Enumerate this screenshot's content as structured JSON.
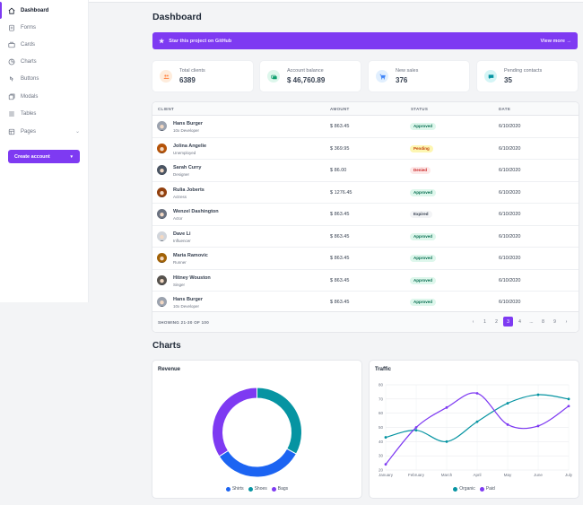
{
  "sidebar": {
    "items": [
      {
        "label": "Dashboard",
        "icon": "home-icon"
      },
      {
        "label": "Forms",
        "icon": "forms-icon"
      },
      {
        "label": "Cards",
        "icon": "cards-icon"
      },
      {
        "label": "Charts",
        "icon": "charts-icon"
      },
      {
        "label": "Buttons",
        "icon": "buttons-icon"
      },
      {
        "label": "Modals",
        "icon": "modals-icon"
      },
      {
        "label": "Tables",
        "icon": "tables-icon"
      },
      {
        "label": "Pages",
        "icon": "pages-icon"
      }
    ],
    "create_button": "Create account"
  },
  "page": {
    "title": "Dashboard",
    "banner_text": "Star this project on GitHub",
    "banner_link": "View more →",
    "charts_title": "Charts"
  },
  "cards": [
    {
      "title": "Total clients",
      "value": "6389",
      "color": "#ff8a4c",
      "bg": "#feecdc"
    },
    {
      "title": "Account balance",
      "value": "$ 46,760.89",
      "color": "#0e9f6e",
      "bg": "#def7ec"
    },
    {
      "title": "New sales",
      "value": "376",
      "color": "#3f83f8",
      "bg": "#e1effe"
    },
    {
      "title": "Pending contacts",
      "value": "35",
      "color": "#0694a2",
      "bg": "#d5f5f6"
    }
  ],
  "table": {
    "headers": [
      "CLIENT",
      "AMOUNT",
      "STATUS",
      "DATE"
    ],
    "rows": [
      {
        "name": "Hans Burger",
        "job": "10x Developer",
        "amount": "$ 863.45",
        "status": "Approved",
        "date": "6/10/2020"
      },
      {
        "name": "Jolina Angelie",
        "job": "Unemployed",
        "amount": "$ 369.95",
        "status": "Pending",
        "date": "6/10/2020"
      },
      {
        "name": "Sarah Curry",
        "job": "Designer",
        "amount": "$ 86.00",
        "status": "Denied",
        "date": "6/10/2020"
      },
      {
        "name": "Rulia Joberts",
        "job": "Actress",
        "amount": "$ 1276.45",
        "status": "Approved",
        "date": "6/10/2020"
      },
      {
        "name": "Wenzel Dashington",
        "job": "Actor",
        "amount": "$ 863.45",
        "status": "Expired",
        "date": "6/10/2020"
      },
      {
        "name": "Dave Li",
        "job": "Influencer",
        "amount": "$ 863.45",
        "status": "Approved",
        "date": "6/10/2020"
      },
      {
        "name": "Maria Ramovic",
        "job": "Runner",
        "amount": "$ 863.45",
        "status": "Approved",
        "date": "6/10/2020"
      },
      {
        "name": "Hitney Wouston",
        "job": "Singer",
        "amount": "$ 863.45",
        "status": "Approved",
        "date": "6/10/2020"
      },
      {
        "name": "Hans Burger",
        "job": "10x Developer",
        "amount": "$ 863.45",
        "status": "Approved",
        "date": "6/10/2020"
      }
    ],
    "showing": "SHOWING 21-30 OF 100",
    "pages": [
      "‹",
      "1",
      "2",
      "3",
      "4",
      "...",
      "8",
      "9",
      "›"
    ],
    "active_page": "3"
  },
  "chart_data": [
    {
      "type": "pie",
      "title": "Revenue",
      "categories": [
        "Shirts",
        "Shoes",
        "Bags"
      ],
      "values": [
        33,
        33,
        34
      ],
      "colors": [
        "#1c64f2",
        "#0694a2",
        "#7e3af2"
      ]
    },
    {
      "type": "line",
      "title": "Traffic",
      "categories": [
        "January",
        "February",
        "March",
        "April",
        "May",
        "June",
        "July"
      ],
      "series": [
        {
          "name": "Organic",
          "values": [
            43,
            48,
            40,
            54,
            67,
            73,
            70
          ],
          "color": "#0694a2"
        },
        {
          "name": "Paid",
          "values": [
            24,
            50,
            64,
            74,
            52,
            51,
            65
          ],
          "color": "#7e3af2"
        }
      ],
      "yticks": [
        20,
        30,
        40,
        50,
        60,
        70,
        80
      ],
      "ylim": [
        20,
        80
      ]
    }
  ]
}
